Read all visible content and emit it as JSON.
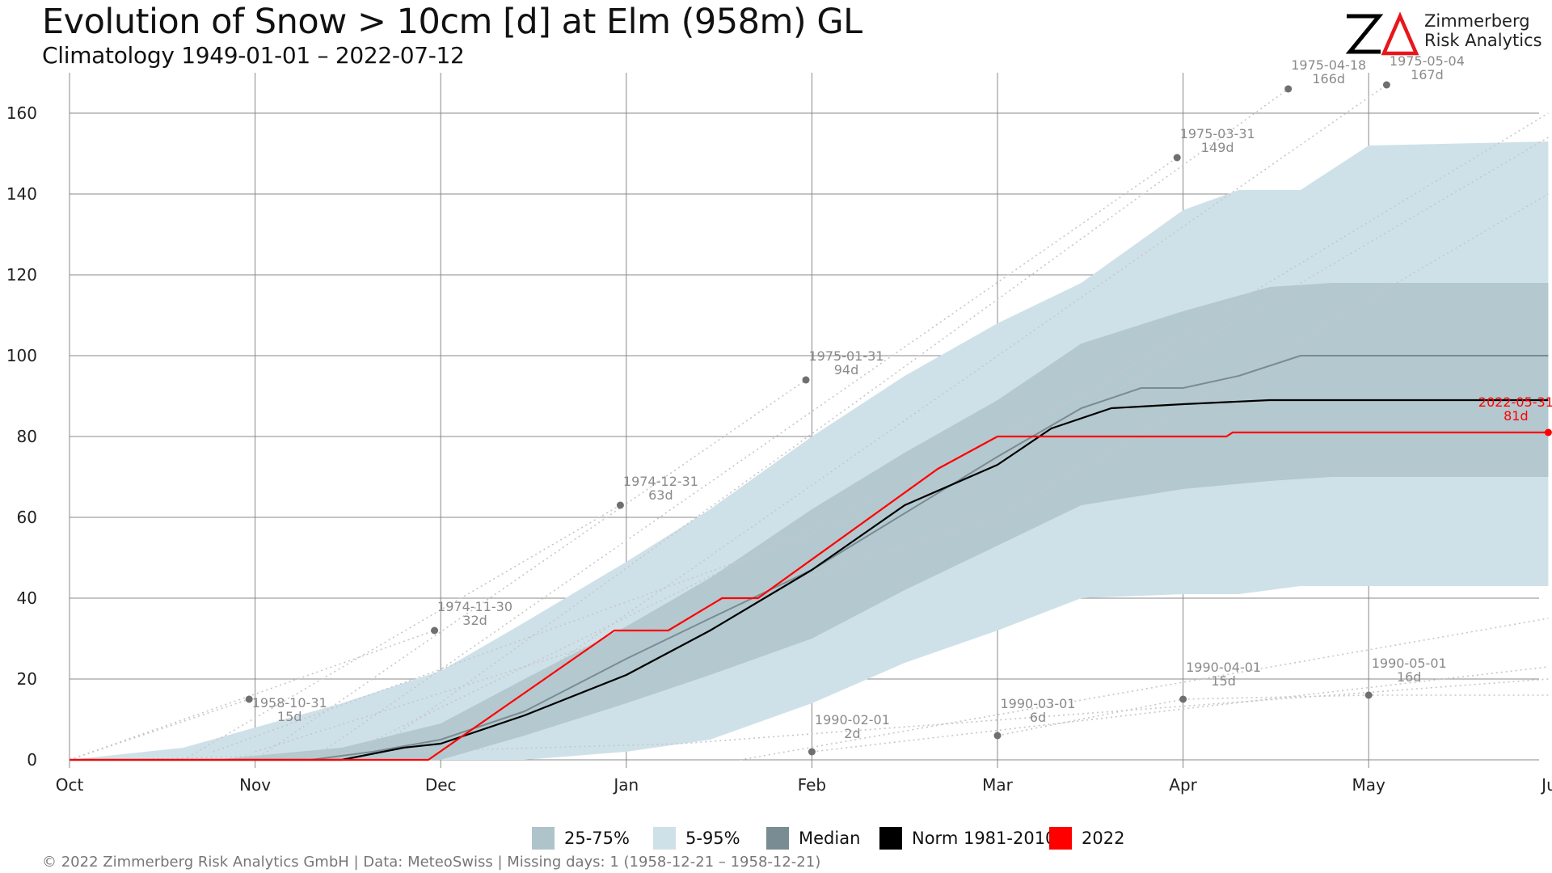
{
  "header": {
    "title": "Evolution of Snow > 10cm [d] at Elm (958m) GL",
    "subtitle": "Climatology 1949-01-01 – 2022-07-12"
  },
  "logo": {
    "mark": "ZA",
    "line1": "Zimmerberg",
    "line2": "Risk Analytics",
    "colors": {
      "z": "#000000",
      "a": "#e8161c"
    }
  },
  "footer": {
    "text": "©  2022 Zimmerberg Risk Analytics GmbH | Data: MeteoSwiss | Missing days: 1 (1958-12-21 – 1958-12-21)"
  },
  "colors": {
    "p5_95": "#cfe1e8",
    "p25_75": "#afc3ca",
    "median": "#7a8c93",
    "norm": "#000000",
    "current": "#ff0000",
    "extremes": "#c7c7c7",
    "annotation": "#8a8a8a",
    "grid": "#888888"
  },
  "legend": [
    {
      "label": "25-75%",
      "color": "#afc3ca"
    },
    {
      "label": "5-95%",
      "color": "#cfe1e8"
    },
    {
      "label": "Median",
      "color": "#7a8c93"
    },
    {
      "label": "Norm 1981-2010",
      "color": "#000000"
    },
    {
      "label": "2022",
      "color": "#ff0000"
    }
  ],
  "chart_data": {
    "type": "area",
    "title": "Evolution of Snow > 10cm [d] at Elm (958m) GL",
    "subtitle": "Climatology 1949-01-01 – 2022-07-12",
    "xlabel": "",
    "ylabel": "",
    "x_ticks": [
      "Oct",
      "Nov",
      "Dec",
      "Jan",
      "Feb",
      "Mar",
      "Apr",
      "May",
      "Jun"
    ],
    "x_tick_dates": [
      "10-01",
      "11-01",
      "12-01",
      "01-01",
      "02-01",
      "03-01",
      "04-01",
      "05-01",
      "06-01"
    ],
    "y_ticks": [
      0,
      20,
      40,
      60,
      80,
      100,
      120,
      140,
      160
    ],
    "ylim": [
      0,
      170
    ],
    "x_range": [
      "10-01",
      "06-01"
    ],
    "grid": true,
    "legend_position": "bottom",
    "series": [
      {
        "name": "5-95%",
        "kind": "band",
        "x": [
          "10-01",
          "10-20",
          "11-01",
          "11-15",
          "12-01",
          "12-15",
          "01-01",
          "01-15",
          "02-01",
          "02-15",
          "03-01",
          "03-15",
          "04-01",
          "04-10",
          "04-20",
          "05-01",
          "05-31"
        ],
        "lower": [
          0,
          0,
          0,
          0,
          0,
          0,
          2,
          5,
          14,
          24,
          32,
          40,
          41,
          41,
          43,
          43,
          43
        ],
        "upper": [
          0,
          3,
          8,
          14,
          22,
          34,
          49,
          62,
          80,
          95,
          108,
          118,
          136,
          141,
          141,
          152,
          153
        ]
      },
      {
        "name": "25-75%",
        "kind": "band",
        "x": [
          "10-01",
          "10-25",
          "11-01",
          "11-15",
          "12-01",
          "12-15",
          "01-01",
          "01-15",
          "02-01",
          "02-15",
          "03-01",
          "03-15",
          "04-01",
          "04-15",
          "04-25",
          "05-31"
        ],
        "lower": [
          0,
          0,
          0,
          0,
          0,
          6,
          14,
          21,
          30,
          42,
          53,
          63,
          67,
          69,
          70,
          70
        ],
        "upper": [
          0,
          0,
          1,
          3,
          9,
          20,
          33,
          45,
          62,
          76,
          89,
          103,
          111,
          117,
          118,
          118
        ]
      },
      {
        "name": "Median",
        "x": [
          "10-01",
          "11-10",
          "11-20",
          "12-01",
          "12-15",
          "01-01",
          "01-15",
          "02-01",
          "02-15",
          "03-01",
          "03-15",
          "03-25",
          "04-01",
          "04-10",
          "04-20",
          "05-31"
        ],
        "y": [
          0,
          0,
          2,
          5,
          12,
          25,
          35,
          47,
          61,
          75,
          87,
          92,
          92,
          95,
          100,
          100
        ]
      },
      {
        "name": "Norm 1981-2010",
        "x": [
          "10-01",
          "11-15",
          "11-25",
          "12-01",
          "12-15",
          "01-01",
          "01-15",
          "02-01",
          "02-15",
          "03-01",
          "03-10",
          "03-20",
          "04-01",
          "04-15",
          "05-31"
        ],
        "y": [
          0,
          0,
          3,
          4,
          11,
          21,
          32,
          47,
          63,
          73,
          82,
          87,
          88,
          89,
          89
        ],
        "color": "#000000"
      },
      {
        "name": "2022",
        "x": [
          "10-01",
          "11-29",
          "12-30",
          "01-08",
          "01-17",
          "01-23",
          "02-20",
          "03-01",
          "04-08",
          "04-09",
          "05-31"
        ],
        "y": [
          0,
          0,
          32,
          32,
          40,
          40,
          72,
          80,
          80,
          81,
          81
        ],
        "color": "#ff0000"
      }
    ],
    "extreme_traces": [
      {
        "x": [
          "10-01",
          "10-31"
        ],
        "y": [
          0,
          15
        ]
      },
      {
        "x": [
          "10-01",
          "11-30"
        ],
        "y": [
          0,
          32
        ]
      },
      {
        "x": [
          "10-20",
          "12-31"
        ],
        "y": [
          0,
          63
        ]
      },
      {
        "x": [
          "11-01",
          "01-31"
        ],
        "y": [
          0,
          94
        ]
      },
      {
        "x": [
          "11-10",
          "03-31"
        ],
        "y": [
          0,
          149
        ]
      },
      {
        "x": [
          "11-20",
          "04-18"
        ],
        "y": [
          2,
          166
        ]
      },
      {
        "x": [
          "12-01",
          "05-04"
        ],
        "y": [
          4,
          167
        ]
      },
      {
        "x": [
          "01-20",
          "05-31"
        ],
        "y": [
          0,
          35
        ]
      },
      {
        "x": [
          "02-01",
          "05-31"
        ],
        "y": [
          2,
          23
        ]
      },
      {
        "x": [
          "03-01",
          "04-01",
          "05-01",
          "05-31"
        ],
        "y": [
          6,
          15,
          16,
          16
        ]
      },
      {
        "x": [
          "10-10",
          "01-10",
          "05-31"
        ],
        "y": [
          0,
          4,
          20
        ]
      },
      {
        "x": [
          "11-01",
          "03-01",
          "05-31"
        ],
        "y": [
          2,
          60,
          140
        ]
      },
      {
        "x": [
          "10-25",
          "02-25",
          "05-31"
        ],
        "y": [
          2,
          70,
          154
        ]
      },
      {
        "x": [
          "11-15",
          "03-15",
          "05-31"
        ],
        "y": [
          1,
          90,
          160
        ]
      }
    ],
    "annotations": [
      {
        "x": "10-31",
        "y": 15,
        "date": "1958-10-31",
        "value": "15d"
      },
      {
        "x": "11-30",
        "y": 32,
        "date": "1974-11-30",
        "value": "32d"
      },
      {
        "x": "12-31",
        "y": 63,
        "date": "1974-12-31",
        "value": "63d"
      },
      {
        "x": "01-31",
        "y": 94,
        "date": "1975-01-31",
        "value": "94d"
      },
      {
        "x": "03-31",
        "y": 149,
        "date": "1975-03-31",
        "value": "149d"
      },
      {
        "x": "04-18",
        "y": 166,
        "date": "1975-04-18",
        "value": "166d"
      },
      {
        "x": "05-04",
        "y": 167,
        "date": "1975-05-04",
        "value": "167d"
      },
      {
        "x": "02-01",
        "y": 2,
        "date": "1990-02-01",
        "value": "2d"
      },
      {
        "x": "03-01",
        "y": 6,
        "date": "1990-03-01",
        "value": "6d"
      },
      {
        "x": "04-01",
        "y": 15,
        "date": "1990-04-01",
        "value": "15d"
      },
      {
        "x": "05-01",
        "y": 16,
        "date": "1990-05-01",
        "value": "16d"
      },
      {
        "x": "05-31",
        "y": 81,
        "date": "2022-05-31",
        "value": "81d",
        "highlight": true
      }
    ]
  }
}
